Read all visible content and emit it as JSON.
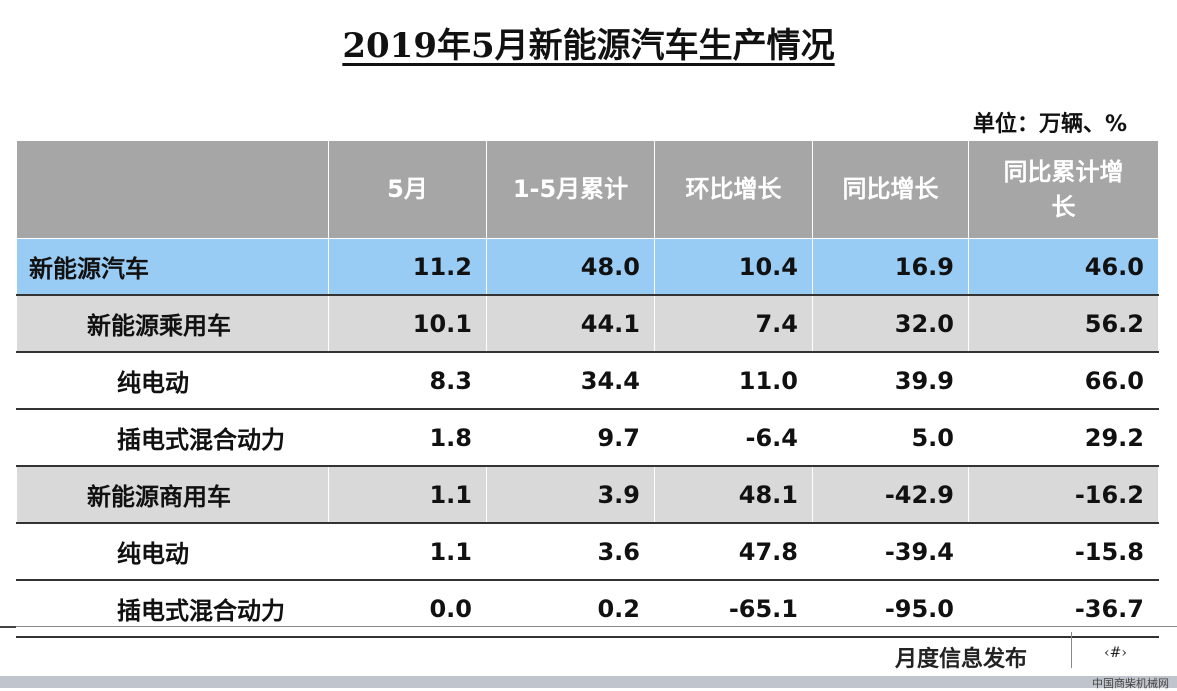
{
  "title": "2019年5月新能源汽车生产情况",
  "unit": "单位：万辆、%",
  "headers": [
    "",
    "5月",
    "1-5月累计",
    "环比增长",
    "同比增长",
    "同比累计增\n长"
  ],
  "rows": [
    {
      "label": "新能源汽车",
      "level": 0,
      "type": "total",
      "values": [
        "11.2",
        "48.0",
        "10.4",
        "16.9",
        "46.0"
      ]
    },
    {
      "label": "新能源乘用车",
      "level": 1,
      "type": "group",
      "values": [
        "10.1",
        "44.1",
        "7.4",
        "32.0",
        "56.2"
      ]
    },
    {
      "label": "纯电动",
      "level": 2,
      "type": "sub",
      "values": [
        "8.3",
        "34.4",
        "11.0",
        "39.9",
        "66.0"
      ]
    },
    {
      "label": "插电式混合动力",
      "level": 2,
      "type": "sub",
      "values": [
        "1.8",
        "9.7",
        "-6.4",
        "5.0",
        "29.2"
      ]
    },
    {
      "label": "新能源商用车",
      "level": 1,
      "type": "group",
      "values": [
        "1.1",
        "3.9",
        "48.1",
        "-42.9",
        "-16.2"
      ]
    },
    {
      "label": "纯电动",
      "level": 2,
      "type": "sub",
      "values": [
        "1.1",
        "3.6",
        "47.8",
        "-39.4",
        "-15.8"
      ]
    },
    {
      "label": "插电式混合动力",
      "level": 2,
      "type": "sub",
      "values": [
        "0.0",
        "0.2",
        "-65.1",
        "-95.0",
        "-36.7"
      ]
    }
  ],
  "footer": {
    "label": "月度信息发布",
    "page": "‹#›"
  },
  "watermark": "中国商柴机械网"
}
